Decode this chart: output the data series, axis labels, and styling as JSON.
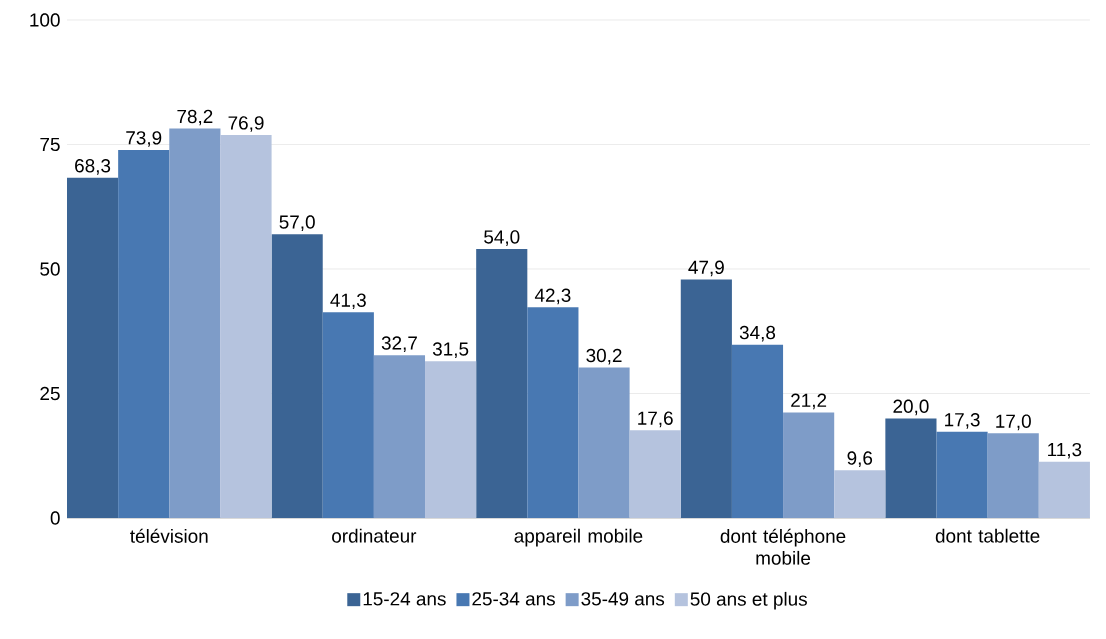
{
  "chart_data": {
    "type": "bar",
    "categories": [
      "télévision",
      "ordinateur",
      "appareil mobile",
      "dont téléphone mobile",
      "dont tablette"
    ],
    "series": [
      {
        "name": "15-24 ans",
        "color": "#3b6494",
        "values": [
          68.3,
          57.0,
          54.0,
          47.9,
          20.0
        ],
        "value_labels": [
          "68,3",
          "57,0",
          "54,0",
          "47,9",
          "20,0"
        ]
      },
      {
        "name": "25-34 ans",
        "color": "#4878b2",
        "values": [
          73.9,
          41.3,
          42.3,
          34.8,
          17.3
        ],
        "value_labels": [
          "73,9",
          "41,3",
          "42,3",
          "34,8",
          "17,3"
        ]
      },
      {
        "name": "35-49 ans",
        "color": "#7e9cc8",
        "values": [
          78.2,
          32.7,
          30.2,
          21.2,
          17.0
        ],
        "value_labels": [
          "78,2",
          "32,7",
          "30,2",
          "21,2",
          "17,0"
        ]
      },
      {
        "name": "50 ans et plus",
        "color": "#b5c3de",
        "values": [
          76.9,
          31.5,
          17.6,
          9.6,
          11.3
        ],
        "value_labels": [
          "76,9",
          "31,5",
          "17,6",
          "9,6",
          "11,3"
        ]
      }
    ],
    "ylim": [
      0,
      100
    ],
    "yticks": [
      0,
      25,
      50,
      75,
      100
    ],
    "grid": "y",
    "legend": "bottom"
  }
}
